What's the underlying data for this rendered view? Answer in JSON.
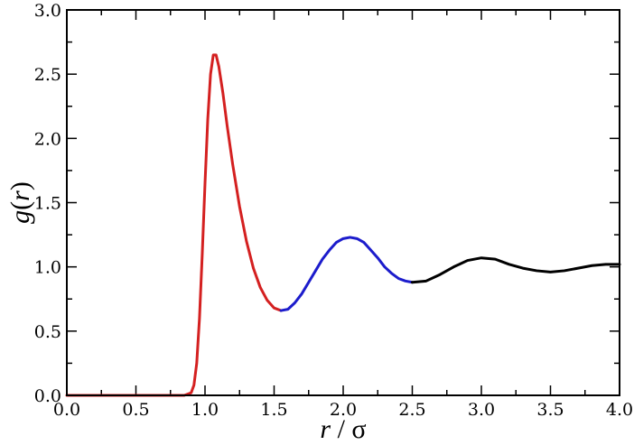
{
  "chart_data": {
    "type": "line",
    "title": "",
    "xlabel_parts": [
      {
        "text": "r",
        "italic": true
      },
      {
        "text": " / σ",
        "italic": false
      }
    ],
    "ylabel_parts": [
      {
        "text": "g",
        "italic": true
      },
      {
        "text": "(",
        "italic": false
      },
      {
        "text": "r",
        "italic": true
      },
      {
        "text": ")",
        "italic": false
      }
    ],
    "xlim": [
      0.0,
      4.0
    ],
    "ylim": [
      0.0,
      3.0
    ],
    "x_ticks": [
      "0.0",
      "0.5",
      "1.0",
      "1.5",
      "2.0",
      "2.5",
      "3.0",
      "3.5",
      "4.0"
    ],
    "y_ticks": [
      "0.0",
      "0.5",
      "1.0",
      "1.5",
      "2.0",
      "2.5",
      "3.0"
    ],
    "grid": false,
    "legend": "none",
    "series": [
      {
        "color": "#d42020",
        "points": [
          [
            0.0,
            0.0
          ],
          [
            0.5,
            0.0
          ],
          [
            0.85,
            0.0
          ],
          [
            0.9,
            0.02
          ],
          [
            0.92,
            0.08
          ],
          [
            0.94,
            0.25
          ],
          [
            0.96,
            0.6
          ],
          [
            0.98,
            1.1
          ],
          [
            1.0,
            1.65
          ],
          [
            1.02,
            2.15
          ],
          [
            1.04,
            2.5
          ],
          [
            1.06,
            2.65
          ],
          [
            1.08,
            2.65
          ],
          [
            1.1,
            2.56
          ],
          [
            1.13,
            2.35
          ],
          [
            1.16,
            2.1
          ],
          [
            1.2,
            1.8
          ],
          [
            1.25,
            1.47
          ],
          [
            1.3,
            1.2
          ],
          [
            1.35,
            0.99
          ],
          [
            1.4,
            0.84
          ],
          [
            1.45,
            0.74
          ],
          [
            1.5,
            0.68
          ],
          [
            1.55,
            0.66
          ]
        ]
      },
      {
        "color": "#1c1ccc",
        "points": [
          [
            1.55,
            0.66
          ],
          [
            1.6,
            0.67
          ],
          [
            1.65,
            0.72
          ],
          [
            1.7,
            0.79
          ],
          [
            1.75,
            0.88
          ],
          [
            1.8,
            0.97
          ],
          [
            1.85,
            1.06
          ],
          [
            1.9,
            1.13
          ],
          [
            1.95,
            1.19
          ],
          [
            2.0,
            1.22
          ],
          [
            2.05,
            1.23
          ],
          [
            2.1,
            1.22
          ],
          [
            2.15,
            1.19
          ],
          [
            2.2,
            1.13
          ],
          [
            2.25,
            1.07
          ],
          [
            2.3,
            1.0
          ],
          [
            2.35,
            0.95
          ],
          [
            2.4,
            0.91
          ],
          [
            2.45,
            0.89
          ],
          [
            2.5,
            0.88
          ]
        ]
      },
      {
        "color": "#000000",
        "points": [
          [
            2.5,
            0.88
          ],
          [
            2.6,
            0.89
          ],
          [
            2.7,
            0.94
          ],
          [
            2.8,
            1.0
          ],
          [
            2.9,
            1.05
          ],
          [
            3.0,
            1.07
          ],
          [
            3.1,
            1.06
          ],
          [
            3.2,
            1.02
          ],
          [
            3.3,
            0.99
          ],
          [
            3.4,
            0.97
          ],
          [
            3.5,
            0.96
          ],
          [
            3.6,
            0.97
          ],
          [
            3.7,
            0.99
          ],
          [
            3.8,
            1.01
          ],
          [
            3.9,
            1.02
          ],
          [
            4.0,
            1.02
          ]
        ]
      }
    ]
  }
}
